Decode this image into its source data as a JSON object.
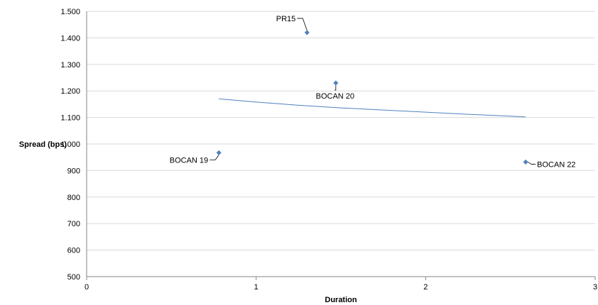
{
  "chart_data": {
    "type": "scatter",
    "title": "",
    "xlabel": "Duration",
    "ylabel": "Spread (bps)",
    "xlim": [
      0,
      3
    ],
    "ylim": [
      500,
      1500
    ],
    "x_ticks": [
      {
        "value": 0,
        "label": "0"
      },
      {
        "value": 1,
        "label": "1"
      },
      {
        "value": 2,
        "label": "2"
      },
      {
        "value": 3,
        "label": "3"
      }
    ],
    "y_ticks": [
      {
        "value": 500,
        "label": "500"
      },
      {
        "value": 600,
        "label": "600"
      },
      {
        "value": 700,
        "label": "700"
      },
      {
        "value": 800,
        "label": "800"
      },
      {
        "value": 900,
        "label": "900"
      },
      {
        "value": 1000,
        "label": "1.000"
      },
      {
        "value": 1100,
        "label": "1.100"
      },
      {
        "value": 1200,
        "label": "1.200"
      },
      {
        "value": 1300,
        "label": "1.300"
      },
      {
        "value": 1400,
        "label": "1.400"
      },
      {
        "value": 1500,
        "label": "1.500"
      }
    ],
    "grid": {
      "horizontal": true,
      "vertical": false
    },
    "points": [
      {
        "label": "PR15",
        "x": 1.3,
        "y": 1420,
        "label_side": "upper-left"
      },
      {
        "label": "BOCAN 20",
        "x": 1.47,
        "y": 1230,
        "label_side": "below"
      },
      {
        "label": "BOCAN 19",
        "x": 0.78,
        "y": 967,
        "label_side": "lower-left"
      },
      {
        "label": "BOCAN 22",
        "x": 2.59,
        "y": 932,
        "label_side": "right"
      }
    ],
    "trendline": {
      "x": [
        0.78,
        1.0,
        1.25,
        1.5,
        1.75,
        2.0,
        2.25,
        2.5,
        2.59
      ],
      "y": [
        1170,
        1158,
        1146,
        1136,
        1128,
        1120,
        1112,
        1105,
        1102
      ]
    },
    "colors": {
      "points": "#4f81bd",
      "trendline": "#4f81bd",
      "grid": "#d9d9d9",
      "axis": "#868686",
      "leader": "#000000"
    }
  }
}
